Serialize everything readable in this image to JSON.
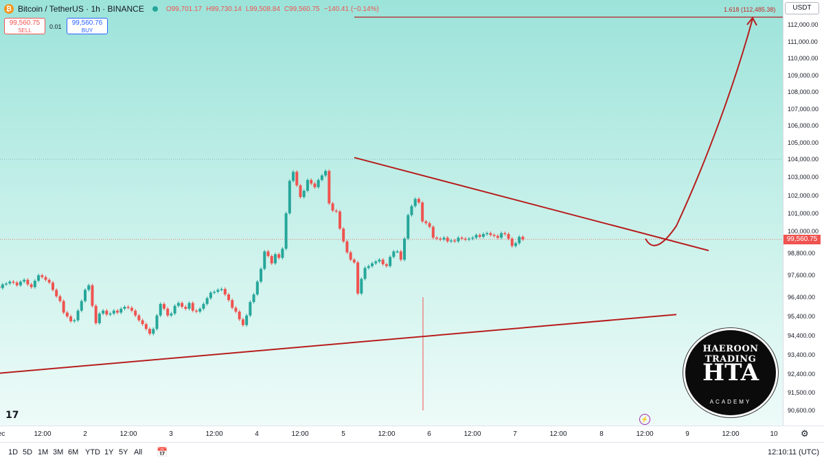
{
  "header": {
    "symbol": "Bitcoin / TetherUS · 1h · BINANCE",
    "ohlc_open": "O99,701.17",
    "ohlc_high": "H99,730.14",
    "ohlc_low": "L99,508.84",
    "ohlc_close": "C99,560.75",
    "change": "−140.41 (−0.14%)",
    "coin_icon": "bitcoin-icon"
  },
  "trade": {
    "sell_price": "99,560.75",
    "sell_label": "SELL",
    "spread": "0.01",
    "buy_price": "99,560.76",
    "buy_label": "BUY"
  },
  "price_axis": {
    "currency": "USDT",
    "current_price": "99,560.75",
    "ticks": [
      "112,000.00",
      "111,000.00",
      "110,000.00",
      "109,000.00",
      "108,000.00",
      "107,000.00",
      "106,000.00",
      "105,000.00",
      "104,000.00",
      "103,000.00",
      "102,000.00",
      "101,000.00",
      "100,000.00",
      "98,800.00",
      "97,600.00",
      "96,400.00",
      "95,400.00",
      "94,400.00",
      "93,400.00",
      "92,400.00",
      "91,500.00",
      "90,600.00"
    ]
  },
  "time_axis": {
    "ticks": [
      "ec",
      "12:00",
      "2",
      "12:00",
      "3",
      "12:00",
      "4",
      "12:00",
      "5",
      "12:00",
      "6",
      "12:00",
      "7",
      "12:00",
      "8",
      "12:00",
      "9",
      "12:00",
      "10"
    ]
  },
  "fib": {
    "label": "1.618 (112,485.38)"
  },
  "bottom_bar": {
    "ranges": [
      "1D",
      "5D",
      "1M",
      "3M",
      "6M",
      "YTD",
      "1Y",
      "5Y",
      "All"
    ],
    "clock": "12:10:11 (UTC)"
  },
  "logo": {
    "top_text": "HAEROON TRADING",
    "mid_text": "HTA",
    "bottom_text": "ACADEMY"
  },
  "tv_logo": "17",
  "colors": {
    "up": "#26a69a",
    "down": "#ef5350",
    "line": "#b71c1c",
    "accent": "#2962ff"
  },
  "chart_data": {
    "type": "candlestick",
    "timeframe": "1h",
    "ylim": [
      90600,
      112500
    ],
    "current_price": 99560.75,
    "fib_target": 112485.38,
    "candles_close": [
      96400,
      96150,
      96550,
      96700,
      96750,
      96850,
      97050,
      97000,
      96900,
      97100,
      97150,
      97250,
      97200,
      97050,
      97250,
      97350,
      97100,
      96950,
      97300,
      97600,
      97500,
      97350,
      97200,
      96800,
      96450,
      96200,
      95600,
      95400,
      95150,
      95200,
      95700,
      96200,
      96800,
      97050,
      95950,
      95050,
      95550,
      95700,
      95500,
      95550,
      95700,
      95600,
      95800,
      95900,
      95850,
      95700,
      95450,
      95200,
      95000,
      94750,
      94500,
      94750,
      95450,
      96050,
      95800,
      95450,
      95550,
      95950,
      96100,
      95900,
      95800,
      96100,
      95700,
      95650,
      95800,
      96050,
      96350,
      96650,
      96700,
      96800,
      96850,
      96550,
      96250,
      95850,
      95650,
      95250,
      94950,
      95450,
      96150,
      96550,
      97250,
      97950,
      98900,
      98650,
      98250,
      98750,
      98550,
      99050,
      101000,
      102800,
      103300,
      102550,
      101900,
      102250,
      102850,
      102650,
      102450,
      102850,
      103100,
      103350,
      101550,
      101150,
      101100,
      100150,
      99450,
      98850,
      98450,
      98300,
      96600,
      97400,
      98000,
      98100,
      98250,
      98350,
      98450,
      98200,
      98100,
      98600,
      98900,
      98900,
      98450,
      99600,
      100900,
      101400,
      101800,
      101600,
      100550,
      100450,
      100250,
      99650,
      99600,
      99550,
      99650,
      99450,
      99500,
      99450,
      99650,
      99600,
      99550,
      99600,
      99650,
      99800,
      99700,
      99850,
      99900,
      99800,
      99750,
      99650,
      99900,
      99850,
      99600,
      99200,
      99350,
      99700,
      99560.75
    ],
    "lines": [
      {
        "name": "upper-trendline",
        "from": [
          "5 Dec",
          104100
        ],
        "to": [
          "8 Dec 21:00",
          98950
        ]
      },
      {
        "name": "lower-trendline",
        "from": [
          "1 Dec",
          92450
        ],
        "to": [
          "8 Dec 18:00",
          95500
        ]
      },
      {
        "name": "projection-arrow",
        "from": [
          "8 Dec 12:00",
          99300
        ],
        "to": [
          "9 Dec 18:00",
          112485.38
        ]
      },
      {
        "name": "low-wick-marker",
        "at": "5 Dec 20:00",
        "value": 90600
      }
    ]
  }
}
